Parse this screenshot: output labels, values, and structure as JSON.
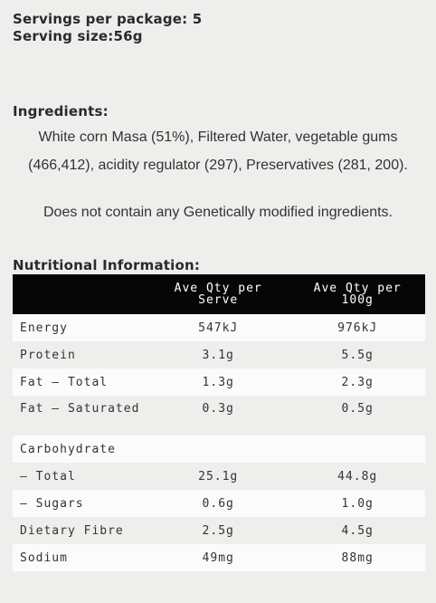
{
  "servings": {
    "per_package": "Servings per package: 5",
    "serving_size": "Serving size:56g"
  },
  "ingredients": {
    "title": "Ingredients:",
    "text": "White corn Masa (51%), Filtered Water, vegetable gums (466,412), acidity regulator (297), Preservatives (281, 200)."
  },
  "gmo_note": "Does not contain any Genetically modified ingredients.",
  "nutrition": {
    "title": "Nutritional Information:",
    "headers": [
      "",
      "Ave Qty per Serve",
      "Ave Qty per 100g"
    ],
    "rows": [
      {
        "label": "Energy",
        "serve": "547kJ",
        "per100": "976kJ"
      },
      {
        "label": "Protein",
        "serve": "3.1g",
        "per100": "5.5g"
      },
      {
        "label": "Fat – Total",
        "serve": "1.3g",
        "per100": "2.3g"
      },
      {
        "label": "Fat – Saturated",
        "serve": "0.3g",
        "per100": "0.5g"
      },
      {
        "label": "Carbohydrate",
        "serve": "",
        "per100": ""
      },
      {
        "label": "– Total",
        "serve": "25.1g",
        "per100": "44.8g"
      },
      {
        "label": "– Sugars",
        "serve": "0.6g",
        "per100": "1.0g"
      },
      {
        "label": "Dietary Fibre",
        "serve": "2.5g",
        "per100": "4.5g"
      },
      {
        "label": "Sodium",
        "serve": "49mg",
        "per100": "88mg"
      }
    ]
  }
}
